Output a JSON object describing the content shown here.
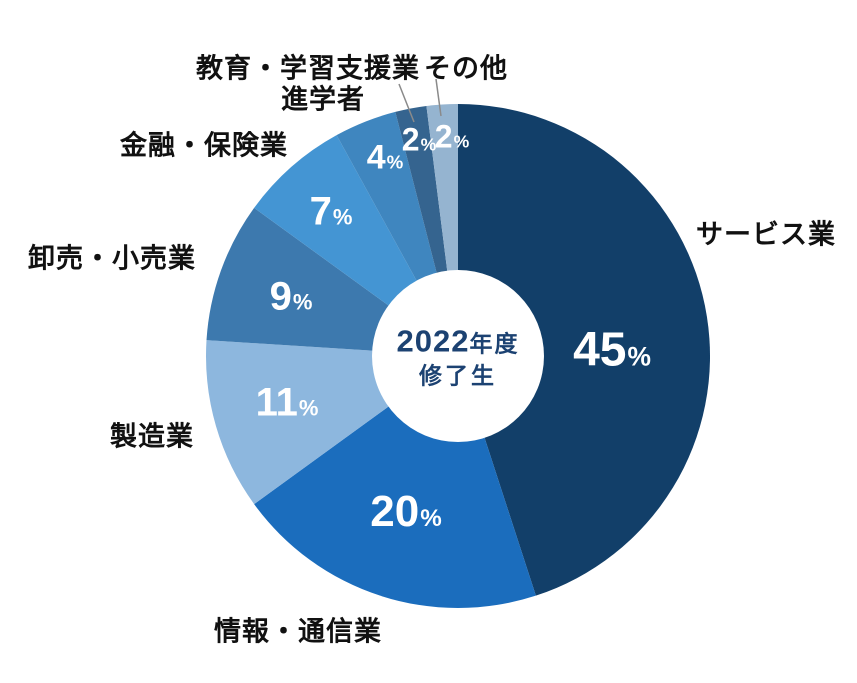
{
  "chart_data": {
    "type": "pie",
    "donut": true,
    "title": "",
    "background": "#ffffff",
    "percent_symbol": "%",
    "value_label_color": "#ffffff",
    "category_label_color": "#111111",
    "leader_line_color": "#8a8a8a",
    "center_label": {
      "year": "2022",
      "year_suffix": "年度",
      "line2": "修了生",
      "color": "#1c4272"
    },
    "slices": [
      {
        "label": "サービス業",
        "value": 45,
        "pct": "45",
        "color": "#123f69"
      },
      {
        "label": "情報・通信業",
        "value": 20,
        "pct": "20",
        "color": "#1b6dbd"
      },
      {
        "label": "製造業",
        "value": 11,
        "pct": "11",
        "color": "#8db7de"
      },
      {
        "label": "卸売・小売業",
        "value": 9,
        "pct": "9",
        "color": "#3d79ae"
      },
      {
        "label": "金融・保険業",
        "value": 7,
        "pct": "7",
        "color": "#4495d3"
      },
      {
        "label": "教育・学習支援業",
        "value": 4,
        "pct": "4",
        "color": "#3f86bf"
      },
      {
        "label": "進学者",
        "value": 2,
        "pct": "2",
        "color": "#35648f"
      },
      {
        "label": "その他",
        "value": 2,
        "pct": "2",
        "color": "#95b4d0"
      }
    ],
    "layout_hints": {
      "start_angle_deg": 0,
      "direction": "clockwise",
      "legend": "none",
      "labels": "outside"
    }
  }
}
